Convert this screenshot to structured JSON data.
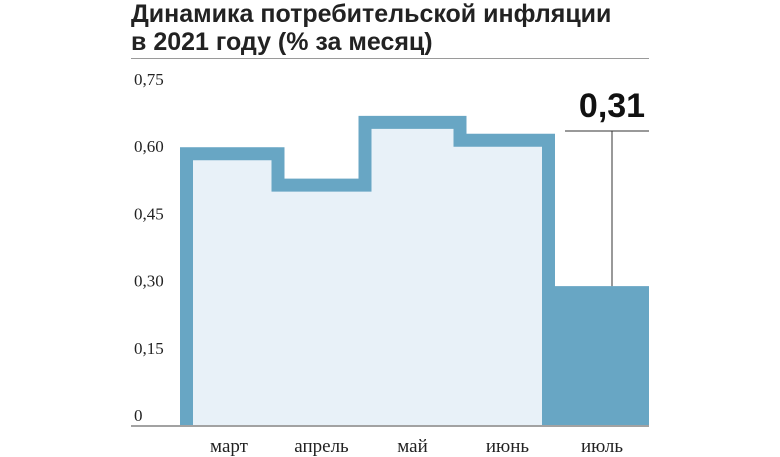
{
  "header": {
    "title_line1": "Динамика потребительской инфляции",
    "title_line2": "в 2021 году (% за месяц)"
  },
  "colors": {
    "bar_fill_light": "#e8f1f8",
    "bar_outline": "#68a6c4",
    "highlight_bar": "#68a6c4",
    "text": "#222222"
  },
  "chart_data": {
    "type": "bar",
    "categories": [
      "март",
      "апрель",
      "май",
      "июнь",
      "июль"
    ],
    "values": [
      0.62,
      0.55,
      0.69,
      0.65,
      0.31
    ],
    "ylim": [
      0,
      0.75
    ],
    "yticks": [
      0,
      0.15,
      0.3,
      0.45,
      0.6,
      0.75
    ],
    "ytick_labels": [
      "0",
      "0,15",
      "0,30",
      "0,45",
      "0,60",
      "0,75"
    ],
    "highlight_index": 4,
    "highlight_label": "0,31",
    "grid": false,
    "legend": "none"
  }
}
